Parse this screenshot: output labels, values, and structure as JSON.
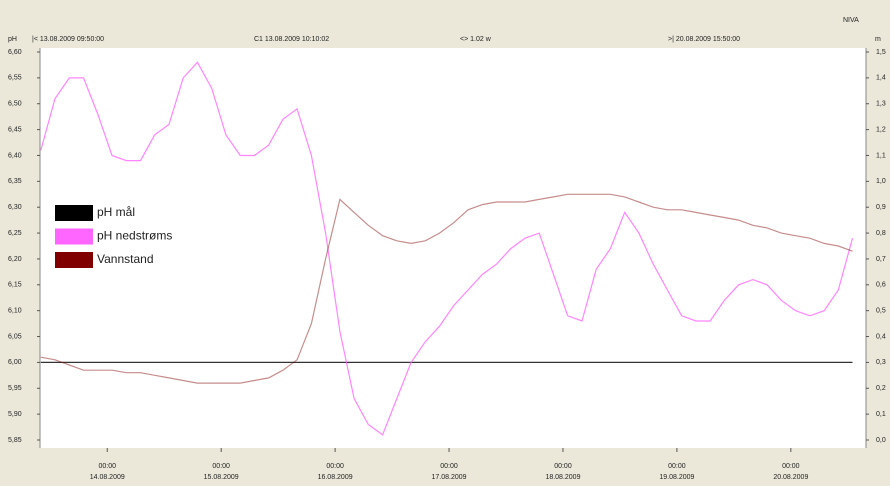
{
  "chart_data": {
    "type": "line",
    "brand": "NIVA",
    "y_label": "pH",
    "y2_label": "m",
    "cursor_info": [
      "|< 13.08.2009 09:50:00",
      "C1 13.08.2009 10:10:02",
      "<> 1.02 w",
      ">| 20.08.2009 15:50:00"
    ],
    "xlim": [
      "13.08.2009 09:50",
      "20.08.2009 15:50"
    ],
    "xticks": [
      {
        "value": "14.08.2009 00:00",
        "label": [
          "00:00",
          "14.08.2009"
        ]
      },
      {
        "value": "15.08.2009 00:00",
        "label": [
          "00:00",
          "15.08.2009"
        ]
      },
      {
        "value": "16.08.2009 00:00",
        "label": [
          "00:00",
          "16.08.2009"
        ]
      },
      {
        "value": "17.08.2009 00:00",
        "label": [
          "00:00",
          "17.08.2009"
        ]
      },
      {
        "value": "18.08.2009 00:00",
        "label": [
          "00:00",
          "18.08.2009"
        ]
      },
      {
        "value": "19.08.2009 00:00",
        "label": [
          "00:00",
          "19.08.2009"
        ]
      },
      {
        "value": "20.08.2009 00:00",
        "label": [
          "00:00",
          "20.08.2009"
        ]
      }
    ],
    "ylim": [
      5.85,
      6.6
    ],
    "yticks": [
      {
        "value": 5.85,
        "label": "5,85"
      },
      {
        "value": 5.9,
        "label": "5,90"
      },
      {
        "value": 5.95,
        "label": "5,95"
      },
      {
        "value": 6.0,
        "label": "6,00"
      },
      {
        "value": 6.05,
        "label": "6,05"
      },
      {
        "value": 6.1,
        "label": "6,10"
      },
      {
        "value": 6.15,
        "label": "6,15"
      },
      {
        "value": 6.2,
        "label": "6,20"
      },
      {
        "value": 6.25,
        "label": "6,25"
      },
      {
        "value": 6.3,
        "label": "6,30"
      },
      {
        "value": 6.35,
        "label": "6,35"
      },
      {
        "value": 6.4,
        "label": "6,40"
      },
      {
        "value": 6.45,
        "label": "6,45"
      },
      {
        "value": 6.5,
        "label": "6,50"
      },
      {
        "value": 6.55,
        "label": "6,55"
      },
      {
        "value": 6.6,
        "label": "6,60"
      }
    ],
    "y2lim": [
      0,
      1.5
    ],
    "y2ticks": [
      {
        "value": 0,
        "label": "0,0"
      },
      {
        "value": 0.1,
        "label": "0,1"
      },
      {
        "value": 0.2,
        "label": "0,2"
      },
      {
        "value": 0.3,
        "label": "0,3"
      },
      {
        "value": 0.4,
        "label": "0,4"
      },
      {
        "value": 0.5,
        "label": "0,5"
      },
      {
        "value": 0.6,
        "label": "0,6"
      },
      {
        "value": 0.7,
        "label": "0,7"
      },
      {
        "value": 0.8,
        "label": "0,8"
      },
      {
        "value": 0.9,
        "label": "0,9"
      },
      {
        "value": 1.0,
        "label": "1,0"
      },
      {
        "value": 1.1,
        "label": "1,1"
      },
      {
        "value": 1.2,
        "label": "1,2"
      },
      {
        "value": 1.3,
        "label": "1,3"
      },
      {
        "value": 1.4,
        "label": "1,4"
      },
      {
        "value": 1.5,
        "label": "1,5"
      }
    ],
    "x": [
      "13.08.2009 10:00",
      "13.08.2009 13:00",
      "13.08.2009 16:00",
      "13.08.2009 19:00",
      "13.08.2009 22:00",
      "14.08.2009 01:00",
      "14.08.2009 04:00",
      "14.08.2009 07:00",
      "14.08.2009 10:00",
      "14.08.2009 13:00",
      "14.08.2009 16:00",
      "14.08.2009 19:00",
      "14.08.2009 22:00",
      "15.08.2009 01:00",
      "15.08.2009 04:00",
      "15.08.2009 07:00",
      "15.08.2009 10:00",
      "15.08.2009 13:00",
      "15.08.2009 16:00",
      "15.08.2009 19:00",
      "15.08.2009 22:00",
      "16.08.2009 01:00",
      "16.08.2009 04:00",
      "16.08.2009 07:00",
      "16.08.2009 10:00",
      "16.08.2009 13:00",
      "16.08.2009 16:00",
      "16.08.2009 19:00",
      "16.08.2009 22:00",
      "17.08.2009 01:00",
      "17.08.2009 04:00",
      "17.08.2009 07:00",
      "17.08.2009 10:00",
      "17.08.2009 13:00",
      "17.08.2009 16:00",
      "17.08.2009 19:00",
      "17.08.2009 22:00",
      "18.08.2009 01:00",
      "18.08.2009 04:00",
      "18.08.2009 07:00",
      "18.08.2009 10:00",
      "18.08.2009 13:00",
      "18.08.2009 16:00",
      "18.08.2009 19:00",
      "18.08.2009 22:00",
      "19.08.2009 01:00",
      "19.08.2009 04:00",
      "19.08.2009 07:00",
      "19.08.2009 10:00",
      "19.08.2009 13:00",
      "19.08.2009 16:00",
      "19.08.2009 19:00",
      "19.08.2009 22:00",
      "20.08.2009 01:00",
      "20.08.2009 04:00",
      "20.08.2009 07:00",
      "20.08.2009 10:00",
      "20.08.2009 13:00"
    ],
    "series": [
      {
        "name": "pH mål",
        "color": "#000000",
        "values": [
          6.0,
          6.0,
          6.0,
          6.0,
          6.0,
          6.0,
          6.0,
          6.0,
          6.0,
          6.0,
          6.0,
          6.0,
          6.0,
          6.0,
          6.0,
          6.0,
          6.0,
          6.0,
          6.0,
          6.0,
          6.0,
          6.0,
          6.0,
          6.0,
          6.0,
          6.0,
          6.0,
          6.0,
          6.0,
          6.0,
          6.0,
          6.0,
          6.0,
          6.0,
          6.0,
          6.0,
          6.0,
          6.0,
          6.0,
          6.0,
          6.0,
          6.0,
          6.0,
          6.0,
          6.0,
          6.0,
          6.0,
          6.0,
          6.0,
          6.0,
          6.0,
          6.0,
          6.0,
          6.0,
          6.0,
          6.0,
          6.0,
          6.0
        ]
      },
      {
        "name": "pH nedstrøms",
        "color": "#ff66ff",
        "values": [
          6.41,
          6.51,
          6.55,
          6.55,
          6.48,
          6.4,
          6.39,
          6.39,
          6.44,
          6.46,
          6.55,
          6.58,
          6.53,
          6.44,
          6.4,
          6.4,
          6.42,
          6.47,
          6.49,
          6.4,
          6.25,
          6.06,
          5.93,
          5.88,
          5.86,
          5.93,
          6.0,
          6.04,
          6.07,
          6.11,
          6.14,
          6.17,
          6.19,
          6.22,
          6.24,
          6.25,
          6.17,
          6.09,
          6.08,
          6.18,
          6.22,
          6.29,
          6.25,
          6.19,
          6.14,
          6.09,
          6.08,
          6.08,
          6.12,
          6.15,
          6.16,
          6.15,
          6.12,
          6.1,
          6.09,
          6.1,
          6.14,
          6.24
        ]
      },
      {
        "name": "Vannstand",
        "color": "#800000",
        "axis": "y2",
        "values": [
          0.32,
          0.31,
          0.29,
          0.27,
          0.27,
          0.27,
          0.26,
          0.26,
          0.25,
          0.24,
          0.23,
          0.22,
          0.22,
          0.22,
          0.22,
          0.23,
          0.24,
          0.27,
          0.31,
          0.45,
          0.7,
          0.93,
          0.88,
          0.83,
          0.79,
          0.77,
          0.76,
          0.77,
          0.8,
          0.84,
          0.89,
          0.91,
          0.92,
          0.92,
          0.92,
          0.93,
          0.94,
          0.95,
          0.95,
          0.95,
          0.95,
          0.94,
          0.92,
          0.9,
          0.89,
          0.89,
          0.88,
          0.87,
          0.86,
          0.85,
          0.83,
          0.82,
          0.8,
          0.79,
          0.78,
          0.76,
          0.75,
          0.73
        ]
      }
    ]
  }
}
